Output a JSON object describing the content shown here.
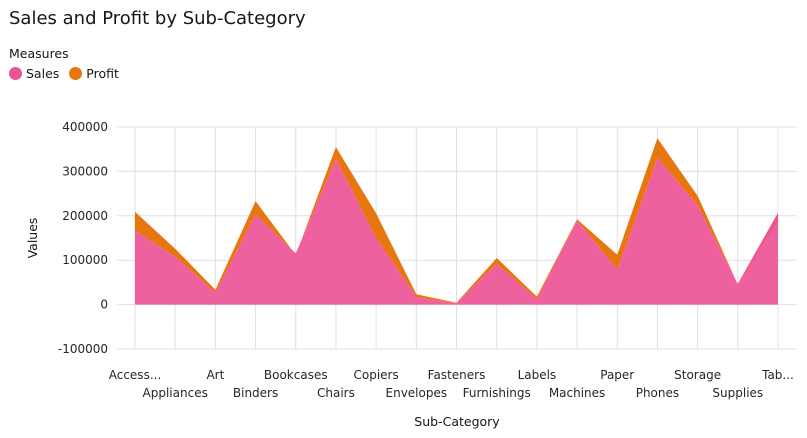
{
  "chart_data": {
    "type": "area",
    "title": "Sales and Profit by Sub-Category",
    "legend_title": "Measures",
    "legend_position": "top-left",
    "xlabel": "Sub-Category",
    "ylabel": "Values",
    "ylim": [
      -100000,
      400000
    ],
    "yticks": [
      "400000",
      "300000",
      "200000",
      "100000",
      "0",
      "-100000"
    ],
    "ytick_values": [
      400000,
      300000,
      200000,
      100000,
      0,
      -100000
    ],
    "grid": true,
    "stacked": true,
    "categories": [
      "Access...",
      "Appliances",
      "Art",
      "Binders",
      "Bookcases",
      "Chairs",
      "Copiers",
      "Envelopes",
      "Fasteners",
      "Furnishings",
      "Labels",
      "Machines",
      "Paper",
      "Phones",
      "Storage",
      "Supplies",
      "Tab..."
    ],
    "series": [
      {
        "name": "Sales",
        "color": "#ee5396",
        "values": [
          167000,
          107500,
          27000,
          203000,
          115000,
          328000,
          150000,
          16500,
          3000,
          92000,
          12500,
          189000,
          78500,
          330000,
          224000,
          46500,
          207000
        ]
      },
      {
        "name": "Profit",
        "color": "#e8760e",
        "values": [
          42000,
          18100,
          6500,
          30000,
          -3500,
          27000,
          55600,
          7000,
          950,
          13000,
          5500,
          3400,
          34000,
          44500,
          21300,
          -1200,
          -17700
        ]
      }
    ]
  }
}
